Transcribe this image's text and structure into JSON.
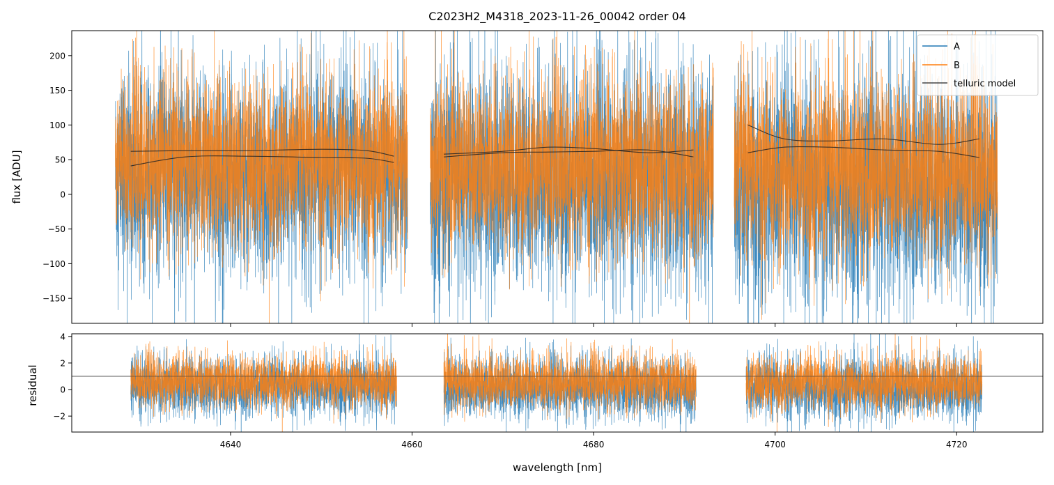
{
  "chart_data": {
    "type": "line",
    "title": "C2023H2_M4318_2023-11-26_00042  order 04",
    "xlabel": "wavelength [nm]",
    "xlim": [
      4622.5,
      4729.5
    ],
    "x_ticks": [
      4640,
      4660,
      4680,
      4700,
      4720
    ],
    "x_tick_labels": [
      "4640",
      "4660",
      "4680",
      "4700",
      "4720"
    ],
    "colors": {
      "A": "#1f77b4",
      "B": "#ff7f0e",
      "telluric": "#222222",
      "axis": "#000000"
    },
    "panels": [
      {
        "name": "flux",
        "ylabel": "flux [ADU]",
        "ylim": [
          -186,
          236
        ],
        "y_ticks": [
          -150,
          -100,
          -50,
          0,
          50,
          100,
          150,
          200
        ],
        "y_tick_labels": [
          "−150",
          "−100",
          "−50",
          "0",
          "50",
          "100",
          "150",
          "200"
        ],
        "segments": [
          {
            "x_range": [
              4627.3,
              4659.5
            ],
            "A_level": 30,
            "A_spread": 75,
            "B_level": 45,
            "B_spread": 60
          },
          {
            "x_range": [
              4662.0,
              4693.2
            ],
            "A_level": 20,
            "A_spread": 80,
            "B_level": 40,
            "B_spread": 62
          },
          {
            "x_range": [
              4695.5,
              4724.5
            ],
            "A_level": 10,
            "A_spread": 85,
            "B_level": 35,
            "B_spread": 65
          }
        ],
        "telluric_model": [
          {
            "name": "telluric model",
            "x": [
              4629,
              4635,
              4642,
              4650,
              4655,
              4658
            ],
            "y": [
              62,
              63,
              63,
              65,
              63,
              55
            ]
          },
          {
            "name": "telluric model",
            "x": [
              4629,
              4635,
              4642,
              4650,
              4655,
              4658
            ],
            "y": [
              41,
              54,
              55,
              53,
              52,
              46
            ]
          },
          {
            "name": "telluric model",
            "x": [
              4663.5,
              4670,
              4675,
              4680,
              4686,
              4691
            ],
            "y": [
              54,
              60,
              61,
              62,
              64,
              54
            ]
          },
          {
            "name": "telluric model",
            "x": [
              4663.5,
              4670,
              4675,
              4680,
              4686,
              4691
            ],
            "y": [
              58,
              62,
              68,
              66,
              60,
              64
            ]
          },
          {
            "name": "telluric model",
            "x": [
              4697,
              4701,
              4706,
              4712,
              4718,
              4722.5
            ],
            "y": [
              100,
              80,
              77,
              80,
              72,
              80
            ]
          },
          {
            "name": "telluric model",
            "x": [
              4697,
              4701,
              4706,
              4712,
              4718,
              4722.5
            ],
            "y": [
              60,
              68,
              68,
              64,
              62,
              53
            ]
          }
        ]
      },
      {
        "name": "residual",
        "ylabel": "residual",
        "ylim": [
          -3.2,
          4.2
        ],
        "y_ticks": [
          -2,
          0,
          2,
          4
        ],
        "y_tick_labels": [
          "−2",
          "0",
          "2",
          "4"
        ],
        "reference_line": 1.0,
        "segments": [
          {
            "x_range": [
              4629.0,
              4658.3
            ],
            "A_level": 0.2,
            "A_spread": 1.1,
            "B_level": 0.6,
            "B_spread": 0.95
          },
          {
            "x_range": [
              4663.5,
              4691.3
            ],
            "A_level": 0.1,
            "A_spread": 1.15,
            "B_level": 0.55,
            "B_spread": 1.0
          },
          {
            "x_range": [
              4696.8,
              4722.8
            ],
            "A_level": 0.05,
            "A_spread": 1.2,
            "B_level": 0.5,
            "B_spread": 1.0
          }
        ]
      }
    ],
    "legend": {
      "position": "upper-right",
      "entries": [
        "A",
        "B",
        "telluric model"
      ]
    }
  }
}
